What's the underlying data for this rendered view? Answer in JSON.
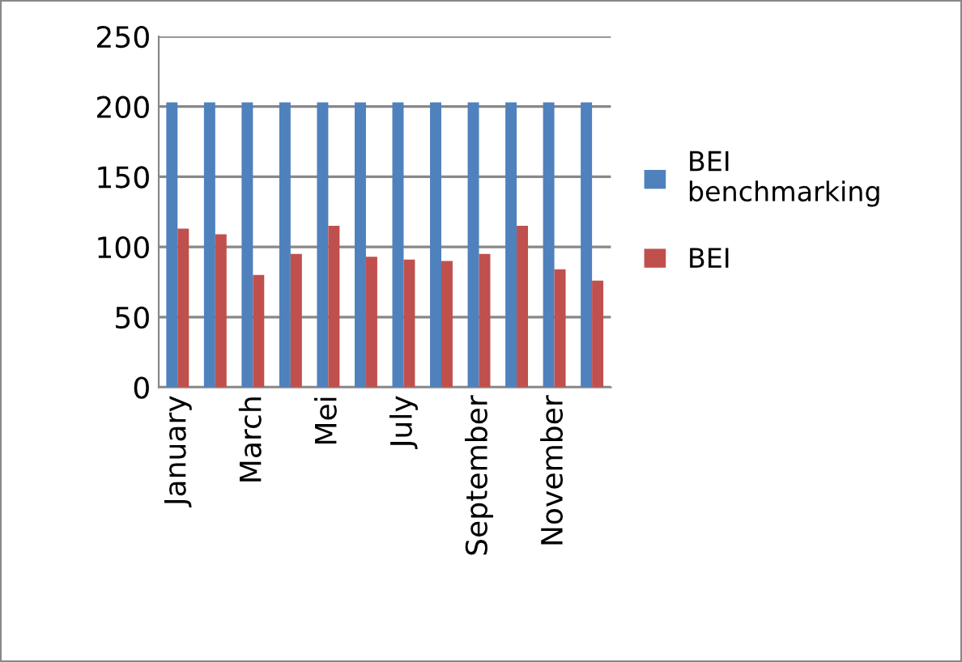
{
  "chart_data": {
    "type": "bar",
    "categories": [
      "January",
      null,
      "March",
      null,
      "Mei",
      null,
      "July",
      null,
      "September",
      null,
      "November",
      null
    ],
    "series": [
      {
        "name": "BEI benchmarking",
        "color": "#4f81bd",
        "values": [
          203,
          203,
          203,
          203,
          203,
          203,
          203,
          203,
          203,
          203,
          203,
          203
        ]
      },
      {
        "name": "BEI",
        "color": "#c0504d",
        "values": [
          113,
          109,
          80,
          95,
          115,
          93,
          91,
          90,
          95,
          115,
          84,
          76
        ]
      }
    ],
    "ylim": [
      0,
      250
    ],
    "yticks": [
      0,
      50,
      100,
      150,
      200,
      250
    ],
    "grid": "y",
    "legend": "right"
  }
}
